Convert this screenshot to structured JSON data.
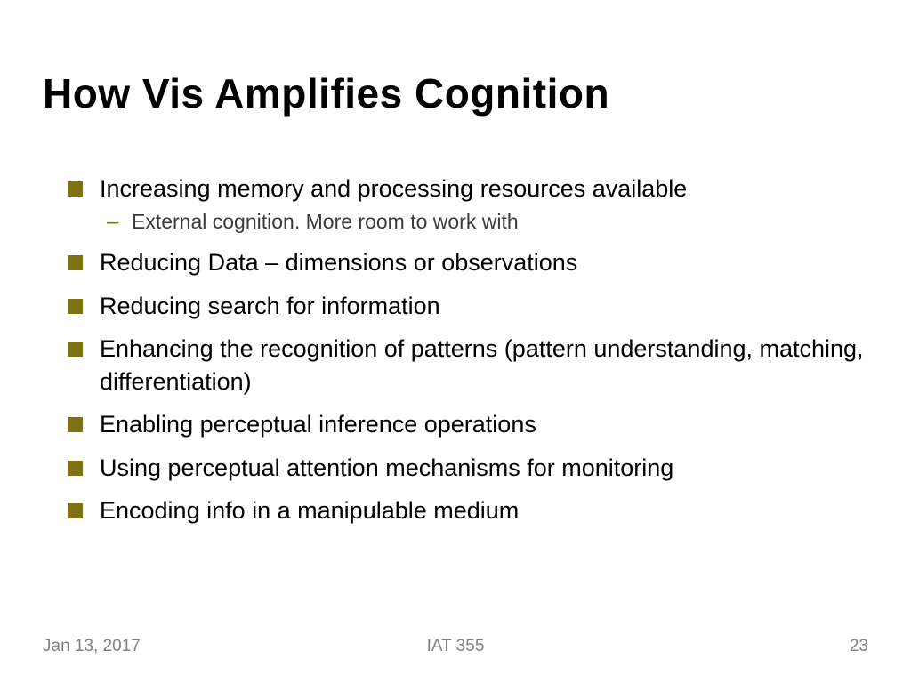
{
  "title": "How Vis Amplifies Cognition",
  "bullets": [
    {
      "text": "Increasing memory and processing resources available",
      "sub": [
        "External cognition. More room to work with"
      ]
    },
    {
      "text": "Reducing Data – dimensions or observations"
    },
    {
      "text": "Reducing search for information"
    },
    {
      "text": "Enhancing the recognition of patterns (pattern understanding, matching, differentiation)"
    },
    {
      "text": "Enabling perceptual inference operations"
    },
    {
      "text": "Using perceptual attention mechanisms for monitoring"
    },
    {
      "text": "Encoding info in a manipulable medium"
    }
  ],
  "footer": {
    "date": "Jan 13, 2017",
    "course": "IAT 355",
    "page": "23"
  },
  "colors": {
    "bullet_square": "#7f7118",
    "title": "#000000",
    "body": "#000000",
    "subtext": "#3b3b3b",
    "footer": "#808080",
    "background": "#ffffff"
  },
  "typography": {
    "title_fontsize": 46,
    "title_weight": 900,
    "body_fontsize": 27,
    "sub_fontsize": 23,
    "footer_fontsize": 19
  }
}
